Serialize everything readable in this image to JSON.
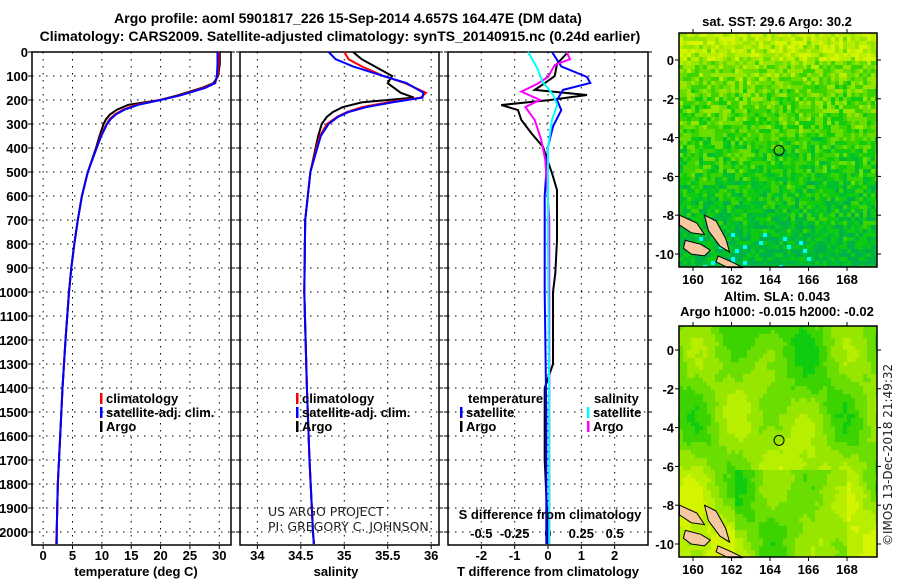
{
  "header": {
    "line1": "Argo profile: aoml 5901817_226 15-Sep-2014 4.657S 164.47E (DM data)",
    "line2": "Climatology: CARS2009. Satellite-adjusted climatology: synTS_20140915.nc (0.24d earlier)"
  },
  "credit": {
    "line1": "US ARGO PROJECT",
    "line2": "PI: GREGORY C. JOHNSON"
  },
  "copyright": "©IMOS 13-Dec-2018 21:49:32",
  "colors": {
    "climatology": "#ff0000",
    "satellite": "#0000ff",
    "argo": "#000000",
    "s_satellite": "#00ffff",
    "s_argo": "#ff00ff",
    "land": "#f5c8a0"
  },
  "chart_data": [
    {
      "type": "line",
      "name": "temperature",
      "xlabel": "temperature (deg C)",
      "ylabel": "",
      "xticks": [
        0,
        5,
        10,
        15,
        20,
        25,
        30
      ],
      "yticks": [
        0,
        100,
        200,
        300,
        400,
        500,
        600,
        700,
        800,
        900,
        1000,
        1100,
        1200,
        1300,
        1400,
        1500,
        1600,
        1700,
        1800,
        1900,
        2000
      ],
      "xlim": [
        -1.9,
        32.0
      ],
      "ylim": [
        2054,
        0
      ],
      "grid": true,
      "legend": [
        "climatology",
        "satellite-adj. clim.",
        "Argo"
      ],
      "depth": [
        0,
        50,
        100,
        130,
        150,
        180,
        200,
        220,
        240,
        260,
        280,
        300,
        350,
        400,
        500,
        600,
        700,
        800,
        900,
        1000,
        1200,
        1400,
        1600,
        1800,
        2000,
        2050
      ],
      "series": [
        {
          "name": "climatology",
          "values": [
            29.9,
            29.9,
            29.7,
            29.2,
            27.3,
            23.3,
            19.8,
            15.8,
            13.6,
            12.2,
            11.3,
            10.8,
            9.8,
            9.1,
            7.6,
            6.6,
            5.9,
            5.3,
            4.8,
            4.4,
            3.8,
            3.3,
            2.9,
            2.5,
            2.3,
            2.2
          ]
        },
        {
          "name": "satellite-adj. clim.",
          "values": [
            29.7,
            29.7,
            29.6,
            29.3,
            27.6,
            23.5,
            20.0,
            16.2,
            13.9,
            12.4,
            11.5,
            10.9,
            9.9,
            9.1,
            7.6,
            6.6,
            5.9,
            5.3,
            4.8,
            4.4,
            3.8,
            3.3,
            2.9,
            2.5,
            2.3,
            2.3
          ]
        },
        {
          "name": "Argo",
          "values": [
            30.1,
            30.1,
            29.8,
            29.0,
            27.0,
            23.0,
            19.9,
            14.5,
            12.6,
            11.4,
            10.7,
            10.3,
            9.6,
            9.0,
            7.6,
            6.6,
            5.9,
            5.3,
            4.8,
            4.4,
            3.8,
            3.3,
            2.9,
            2.5,
            2.3,
            2.3
          ]
        }
      ]
    },
    {
      "type": "line",
      "name": "salinity",
      "xlabel": "salinity",
      "xticks": [
        34,
        34.5,
        35,
        35.5,
        36
      ],
      "xlim": [
        33.8,
        36.09
      ],
      "ylim": [
        2054,
        0
      ],
      "grid": true,
      "legend": [
        "climatology",
        "satellite-adj. clim.",
        "Argo"
      ],
      "depth": [
        0,
        30,
        60,
        100,
        130,
        170,
        190,
        210,
        230,
        250,
        270,
        300,
        350,
        400,
        500,
        700,
        1000,
        1400,
        1700,
        2000,
        2050
      ],
      "series": [
        {
          "name": "climatology",
          "values": [
            35.0,
            35.05,
            35.2,
            35.45,
            35.7,
            35.94,
            35.88,
            35.5,
            35.2,
            35.03,
            34.92,
            34.8,
            34.72,
            34.68,
            34.61,
            34.55,
            34.54,
            34.57,
            34.6,
            34.64,
            34.65
          ]
        },
        {
          "name": "satellite-adj. clim.",
          "values": [
            34.82,
            34.9,
            35.1,
            35.45,
            35.72,
            35.91,
            35.9,
            35.55,
            35.25,
            35.05,
            34.93,
            34.82,
            34.73,
            34.69,
            34.61,
            34.55,
            34.54,
            34.57,
            34.6,
            34.64,
            34.65
          ]
        },
        {
          "name": "Argo",
          "values": [
            35.1,
            35.2,
            35.35,
            35.55,
            35.5,
            35.65,
            35.8,
            35.2,
            34.98,
            34.87,
            34.8,
            34.74,
            34.7,
            34.67,
            34.61,
            34.55,
            34.54,
            34.57,
            34.6,
            34.64,
            34.65
          ]
        }
      ]
    },
    {
      "type": "line",
      "name": "difference",
      "xlabel": "T difference from climatology",
      "xlabel_s": "S difference from climatology",
      "xticks": [
        -2,
        -1,
        0,
        1,
        2
      ],
      "xticks_s": [
        -0.5,
        -0.25,
        0,
        0.25,
        0.5
      ],
      "xlim": [
        -3.0,
        3.0
      ],
      "xlim_s": [
        -0.75,
        0.75
      ],
      "ylim": [
        2054,
        0
      ],
      "grid": true,
      "legend_t": {
        "title": "temperature",
        "items": [
          "satellite",
          "Argo"
        ]
      },
      "legend_s": {
        "title": "salinity",
        "items": [
          "satellite",
          "Argo"
        ]
      },
      "series": [
        {
          "name": "temperature Argo",
          "depth": [
            0,
            50,
            100,
            130,
            158,
            179,
            200,
            221,
            242,
            283,
            338,
            395,
            437,
            505,
            575,
            783,
            922,
            1000,
            1300,
            1400,
            1700,
            2000,
            2050
          ],
          "values": [
            0.6,
            0.27,
            0.2,
            -0.1,
            -0.4,
            1.17,
            0.06,
            -1.4,
            -0.9,
            -0.8,
            -0.5,
            -0.15,
            -0.05,
            0.12,
            0.27,
            0.27,
            0.22,
            0.15,
            0.15,
            -0.1,
            -0.1,
            0.0,
            0.0
          ]
        },
        {
          "name": "temperature satellite",
          "depth": [
            0,
            60,
            104,
            129,
            158,
            200,
            242,
            310,
            395,
            600,
            1000,
            1500,
            2050
          ],
          "values": [
            0.12,
            0.4,
            1.17,
            1.27,
            0.45,
            0.27,
            0.4,
            0.15,
            0.0,
            -0.1,
            -0.1,
            -0.05,
            -0.05
          ]
        },
        {
          "name": "salinity Argo",
          "depth": [
            0,
            30,
            54,
            104,
            133,
            165,
            200,
            229,
            283,
            367,
            450,
            700,
            1200,
            2050
          ],
          "values": [
            0.14,
            0.165,
            0.05,
            0.0,
            -0.08,
            -0.2,
            -0.06,
            -0.17,
            -0.1,
            -0.05,
            -0.02,
            0.01,
            0.01,
            0.01
          ]
        },
        {
          "name": "salinity satellite",
          "depth": [
            0,
            68,
            125,
            179,
            221,
            283,
            400,
            800,
            1500,
            2050
          ],
          "values": [
            -0.15,
            -0.08,
            -0.04,
            0.04,
            0.07,
            0.03,
            0.0,
            0.0,
            0.01,
            0.01
          ]
        }
      ]
    }
  ],
  "maps": [
    {
      "title": "sat. SST: 29.6 Argo: 30.2",
      "title2": "",
      "type": "heatmap",
      "lon_ticks": [
        160,
        162,
        164,
        166,
        168
      ],
      "lat_ticks": [
        0,
        -2,
        -4,
        -6,
        -8,
        -10
      ],
      "lon_range": [
        159.3,
        169.6
      ],
      "lat_range": [
        1.3,
        -10.6
      ],
      "float_lon": 164.47,
      "float_lat": -4.657
    },
    {
      "title": "Altim. SLA: 0.043",
      "title2": "Argo h1000: -0.015 h2000: -0.02",
      "type": "heatmap",
      "lon_ticks": [
        160,
        162,
        164,
        166,
        168
      ],
      "lat_ticks": [
        0,
        -2,
        -4,
        -6,
        -8,
        -10
      ],
      "lon_range": [
        159.3,
        169.6
      ],
      "lat_range": [
        1.2,
        -10.7
      ],
      "float_lon": 164.47,
      "float_lat": -4.657
    }
  ]
}
